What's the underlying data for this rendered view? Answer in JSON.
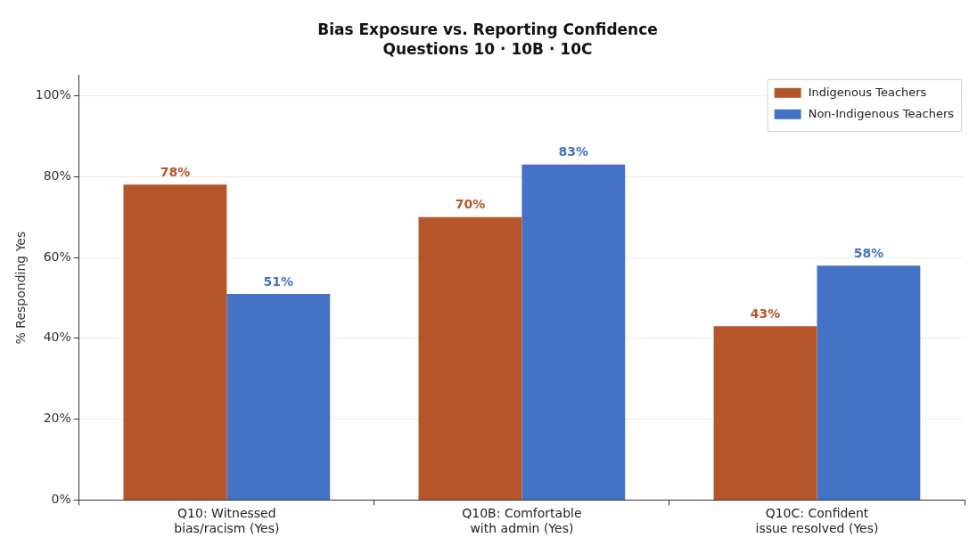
{
  "chart_data": {
    "type": "bar",
    "title": "Bias Exposure vs. Reporting Confidence",
    "subtitle": "Questions 10 · 10B · 10C",
    "ylabel": "% Responding Yes",
    "categories": [
      "Q10: Witnessed\nbias/racism (Yes)",
      "Q10B: Comfortable\nwith admin (Yes)",
      "Q10C: Confident\nissue resolved (Yes)"
    ],
    "series": [
      {
        "name": "Indigenous Teachers",
        "color": "#b5562a",
        "values": [
          78,
          70,
          43
        ],
        "value_labels": [
          "78%",
          "70%",
          "43%"
        ]
      },
      {
        "name": "Non-Indigenous Teachers",
        "color": "#4472c4",
        "values": [
          51,
          83,
          58
        ],
        "value_labels": [
          "51%",
          "83%",
          "58%"
        ]
      }
    ],
    "ylim": [
      0,
      105
    ],
    "yticks": [
      {
        "value": 0,
        "label": "0%"
      },
      {
        "value": 20,
        "label": "20%"
      },
      {
        "value": 40,
        "label": "40%"
      },
      {
        "value": 60,
        "label": "60%"
      },
      {
        "value": 80,
        "label": "80%"
      },
      {
        "value": 100,
        "label": "100%"
      }
    ],
    "grid": "y",
    "legend": "top right"
  }
}
